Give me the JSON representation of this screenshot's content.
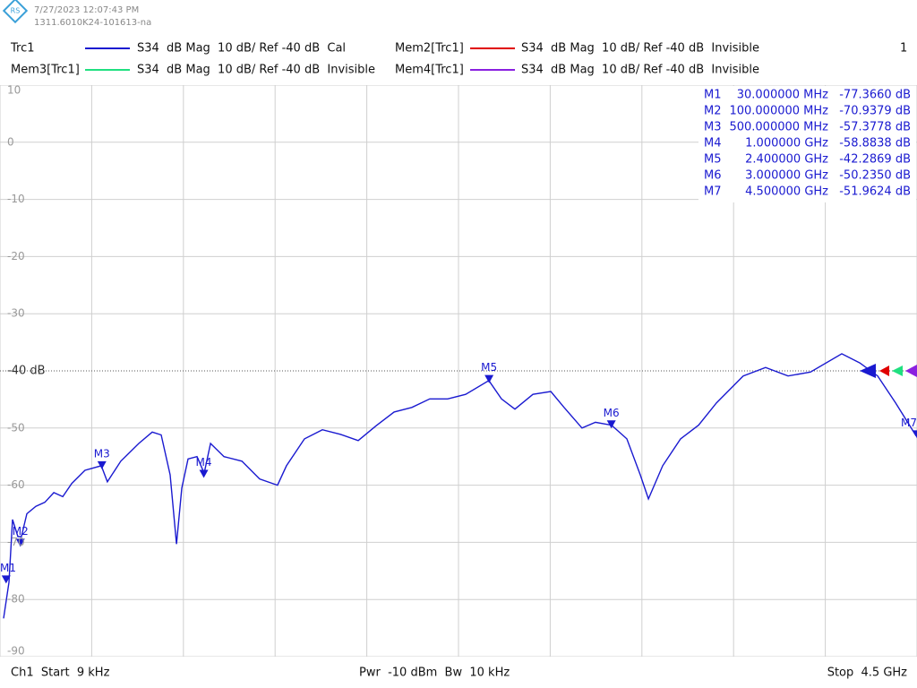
{
  "header": {
    "date": "7/27/2023 12:07:43 PM",
    "instrument": "1311.6010K24-101613-na",
    "channel_number": "1"
  },
  "footer": {
    "left": "Ch1  Start  9 kHz",
    "center": "Pwr  -10 dBm  Bw  10 kHz",
    "right": "Stop  4.5 GHz"
  },
  "chart_data": {
    "type": "line",
    "xlim": [
      0.009,
      4500
    ],
    "ylim": [
      -90,
      10
    ],
    "yticks": [
      10,
      0,
      -10,
      -20,
      -30,
      {
        "value": -40,
        "label": "-40 dB"
      },
      -50,
      -60,
      -70,
      -80,
      -90
    ],
    "ref_level": -40,
    "grid": true,
    "series": [
      {
        "name": "Trc1",
        "color": "#1a1ad0",
        "desc": "S34  dB Mag  10 dB/ Ref -40 dB  Cal",
        "x": [
          17.6,
          44,
          61.5,
          88,
          105,
          132,
          176,
          220,
          264,
          308,
          352,
          417,
          497,
          527,
          593,
          681,
          747,
          791,
          835,
          866,
          892,
          923,
          967,
          1002,
          1033,
          1099,
          1187,
          1274,
          1362,
          1406,
          1494,
          1582,
          1670,
          1758,
          1846,
          1934,
          2021,
          2109,
          2197,
          2285,
          2399,
          2461,
          2527,
          2615,
          2703,
          2768,
          2856,
          2922,
          3001,
          3076,
          3142,
          3182,
          3252,
          3340,
          3428,
          3516,
          3647,
          3757,
          3867,
          3977,
          4131,
          4219,
          4307,
          4395,
          4496
        ],
        "values": [
          -83.3,
          -77,
          -66,
          -69,
          -69,
          -65,
          -63.7,
          -63,
          -61.3,
          -62,
          -59.7,
          -57.4,
          -56.6,
          -59.4,
          -55.8,
          -52.7,
          -50.7,
          -51.2,
          -58.2,
          -70.3,
          -60.5,
          -55.4,
          -55,
          -57.9,
          -52.7,
          -55,
          -55.8,
          -58.9,
          -60,
          -56.6,
          -51.9,
          -50.3,
          -51.1,
          -52.2,
          -49.6,
          -47.2,
          -46.4,
          -44.9,
          -44.9,
          -44.1,
          -41.7,
          -44.9,
          -46.7,
          -44.1,
          -43.6,
          -46.4,
          -50,
          -49,
          -49.5,
          -51.9,
          -58.2,
          -62.4,
          -56.6,
          -51.9,
          -49.5,
          -45.6,
          -40.9,
          -39.4,
          -40.9,
          -40.2,
          -37,
          -38.6,
          -40.9,
          -45.6,
          -51.4
        ]
      }
    ],
    "memory_traces": [
      {
        "name": "Mem2[Trc1]",
        "color": "#e00000",
        "desc": "S34  dB Mag  10 dB/ Ref -40 dB  Invisible"
      },
      {
        "name": "Mem3[Trc1]",
        "color": "#20e080",
        "desc": "S34  dB Mag  10 dB/ Ref -40 dB  Invisible"
      },
      {
        "name": "Mem4[Trc1]",
        "color": "#8a20e0",
        "desc": "S34  dB Mag  10 dB/ Ref -40 dB  Invisible"
      }
    ],
    "markers": [
      {
        "name": "M1",
        "x": 30,
        "x_label": "30.000000 MHz",
        "value": -77.366,
        "value_label": "-77.3660 dB"
      },
      {
        "name": "M2",
        "x": 100,
        "x_label": "100.000000 MHz",
        "value": -70.9379,
        "value_label": "-70.9379 dB"
      },
      {
        "name": "M3",
        "x": 500,
        "x_label": "500.000000 MHz",
        "value": -57.3778,
        "value_label": "-57.3778 dB"
      },
      {
        "name": "M4",
        "x": 1000,
        "x_label": "1.000000 GHz",
        "value": -58.8838,
        "value_label": "-58.8838 dB"
      },
      {
        "name": "M5",
        "x": 2400,
        "x_label": "2.400000 GHz",
        "value": -42.2869,
        "value_label": "-42.2869 dB"
      },
      {
        "name": "M6",
        "x": 3000,
        "x_label": "3.000000 GHz",
        "value": -50.235,
        "value_label": "-50.2350 dB"
      },
      {
        "name": "M7",
        "x": 4500,
        "x_label": "4.500000 GHz",
        "value": -51.9624,
        "value_label": "-51.9624 dB"
      }
    ]
  }
}
